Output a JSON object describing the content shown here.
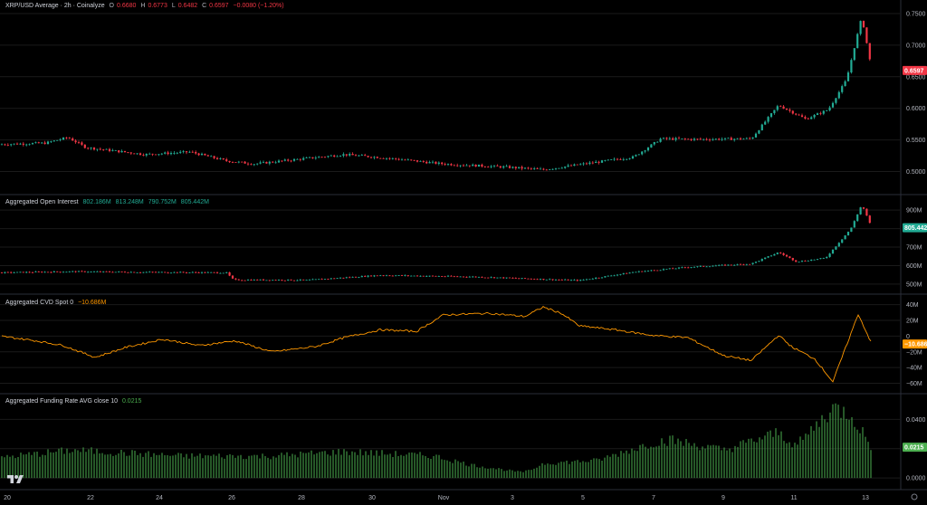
{
  "header": {
    "title": "XRP/USD Average · 2h · Coinalyze",
    "ohlc": [
      {
        "label": "O",
        "value": "0.6680"
      },
      {
        "label": "H",
        "value": "0.6773"
      },
      {
        "label": "L",
        "value": "0.6482"
      },
      {
        "label": "C",
        "value": "0.6597"
      }
    ],
    "change": "−0.0080 (−1.20%)"
  },
  "colors": {
    "up": "#22ab94",
    "down": "#f23645",
    "cvd": "#ff9800",
    "funding": "#4caf50",
    "grid": "#1a1a1a",
    "divider": "#2a2e39"
  },
  "chart_data": [
    {
      "type": "candlestick",
      "title": "XRP/USD Average · 2h · Coinalyze",
      "yticks": [
        "0.7500",
        "0.7000",
        "0.6500",
        "0.6000",
        "0.5500",
        "0.5000"
      ],
      "ylim": [
        0.475,
        0.76
      ],
      "last_value": "0.6597",
      "anchors": [
        [
          0,
          0.543
        ],
        [
          50,
          0.545
        ],
        [
          75,
          0.554
        ],
        [
          95,
          0.538
        ],
        [
          160,
          0.527
        ],
        [
          210,
          0.531
        ],
        [
          250,
          0.517
        ],
        [
          280,
          0.512
        ],
        [
          380,
          0.527
        ],
        [
          430,
          0.521
        ],
        [
          490,
          0.512
        ],
        [
          560,
          0.507
        ],
        [
          600,
          0.503
        ],
        [
          640,
          0.511
        ],
        [
          700,
          0.523
        ],
        [
          730,
          0.552
        ],
        [
          770,
          0.551
        ],
        [
          830,
          0.552
        ],
        [
          860,
          0.605
        ],
        [
          890,
          0.583
        ],
        [
          915,
          0.598
        ],
        [
          935,
          0.645
        ],
        [
          952,
          0.745
        ],
        [
          963,
          0.66
        ]
      ]
    },
    {
      "type": "candlestick",
      "title": "Aggregated Open Interest",
      "values_text": [
        "802.186M",
        "813.248M",
        "790.752M",
        "805.442M"
      ],
      "yticks": [
        "900M",
        "800M",
        "700M",
        "600M",
        "500M"
      ],
      "ylim": [
        485,
        940
      ],
      "last_value": "805.442",
      "anchors": [
        [
          0,
          562
        ],
        [
          80,
          568
        ],
        [
          150,
          565
        ],
        [
          250,
          562
        ],
        [
          258,
          523
        ],
        [
          340,
          522
        ],
        [
          420,
          548
        ],
        [
          520,
          540
        ],
        [
          640,
          520
        ],
        [
          700,
          565
        ],
        [
          760,
          592
        ],
        [
          830,
          610
        ],
        [
          860,
          672
        ],
        [
          880,
          621
        ],
        [
          912,
          641
        ],
        [
          940,
          800
        ],
        [
          952,
          930
        ],
        [
          963,
          805
        ]
      ]
    },
    {
      "type": "line",
      "title": "Aggregated CVD Spot 0",
      "value_text": "−10.686M",
      "yticks": [
        "40M",
        "20M",
        "0",
        "−20M",
        "−40M",
        "−60M"
      ],
      "ylim": [
        -64,
        43
      ],
      "last_value": "−10.686",
      "anchors": [
        [
          0,
          0
        ],
        [
          40,
          -6
        ],
        [
          70,
          -12
        ],
        [
          105,
          -27
        ],
        [
          140,
          -14
        ],
        [
          180,
          -4
        ],
        [
          220,
          -12
        ],
        [
          260,
          -6
        ],
        [
          300,
          -20
        ],
        [
          350,
          -13
        ],
        [
          380,
          -2
        ],
        [
          420,
          8
        ],
        [
          460,
          6
        ],
        [
          490,
          27
        ],
        [
          540,
          29
        ],
        [
          580,
          25
        ],
        [
          600,
          37
        ],
        [
          620,
          29
        ],
        [
          640,
          13
        ],
        [
          680,
          8
        ],
        [
          720,
          1
        ],
        [
          760,
          -2
        ],
        [
          800,
          -25
        ],
        [
          830,
          -31
        ],
        [
          860,
          1
        ],
        [
          875,
          -14
        ],
        [
          900,
          -29
        ],
        [
          920,
          -58
        ],
        [
          935,
          -12
        ],
        [
          948,
          28
        ],
        [
          963,
          -10
        ]
      ]
    },
    {
      "type": "bar",
      "title": "Aggregated Funding Rate AVG close 10",
      "value_text": "0.0215",
      "yticks": [
        "0.0400",
        "0.0200",
        "0.0000"
      ],
      "ylim": [
        -0.003,
        0.052
      ],
      "last_value": "0.0215",
      "anchors": [
        [
          0,
          0.014
        ],
        [
          80,
          0.019
        ],
        [
          200,
          0.015
        ],
        [
          300,
          0.015
        ],
        [
          380,
          0.018
        ],
        [
          480,
          0.015
        ],
        [
          520,
          0.009
        ],
        [
          575,
          0.004
        ],
        [
          585,
          0.005
        ],
        [
          600,
          0.01
        ],
        [
          660,
          0.012
        ],
        [
          720,
          0.024
        ],
        [
          740,
          0.026
        ],
        [
          800,
          0.019
        ],
        [
          860,
          0.031
        ],
        [
          880,
          0.022
        ],
        [
          920,
          0.048
        ],
        [
          940,
          0.044
        ],
        [
          963,
          0.021
        ]
      ]
    }
  ],
  "xaxis": {
    "labels": [
      {
        "text": "20",
        "pos": 8
      },
      {
        "text": "22",
        "pos": 100
      },
      {
        "text": "24",
        "pos": 176
      },
      {
        "text": "26",
        "pos": 256
      },
      {
        "text": "28",
        "pos": 333
      },
      {
        "text": "30",
        "pos": 411
      },
      {
        "text": "Nov",
        "pos": 490
      },
      {
        "text": "3",
        "pos": 566
      },
      {
        "text": "5",
        "pos": 644
      },
      {
        "text": "7",
        "pos": 722
      },
      {
        "text": "9",
        "pos": 799
      },
      {
        "text": "11",
        "pos": 877
      },
      {
        "text": "13",
        "pos": 956
      }
    ],
    "settings_icon": "gear-icon"
  }
}
